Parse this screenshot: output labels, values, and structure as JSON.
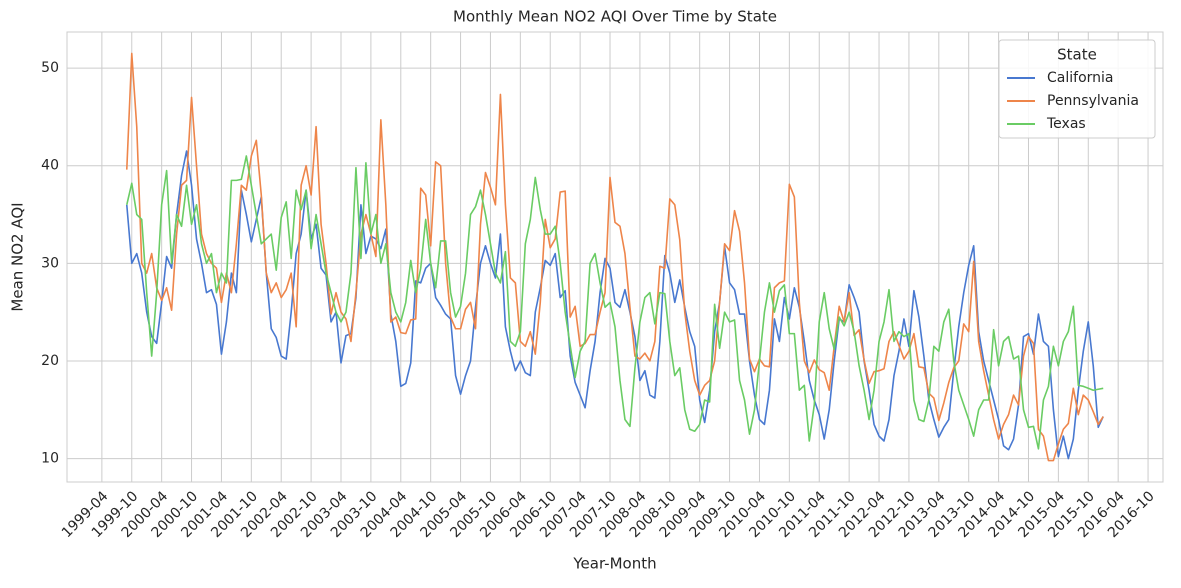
{
  "chart_data": {
    "type": "line",
    "title": "Monthly Mean NO2 AQI Over Time by State",
    "xlabel": "Year-Month",
    "ylabel": "Mean NO2 AQI",
    "x": [
      "1999-09",
      "1999-10",
      "1999-11",
      "1999-12",
      "2000-01",
      "2000-02",
      "2000-03",
      "2000-04",
      "2000-05",
      "2000-06",
      "2000-07",
      "2000-08",
      "2000-09",
      "2000-10",
      "2000-11",
      "2000-12",
      "2001-01",
      "2001-02",
      "2001-03",
      "2001-04",
      "2001-05",
      "2001-06",
      "2001-07",
      "2001-08",
      "2001-09",
      "2001-10",
      "2001-11",
      "2001-12",
      "2002-01",
      "2002-02",
      "2002-03",
      "2002-04",
      "2002-05",
      "2002-06",
      "2002-07",
      "2002-08",
      "2002-09",
      "2002-10",
      "2002-11",
      "2002-12",
      "2003-01",
      "2003-02",
      "2003-03",
      "2003-04",
      "2003-05",
      "2003-06",
      "2003-07",
      "2003-08",
      "2003-09",
      "2003-10",
      "2003-11",
      "2003-12",
      "2004-01",
      "2004-02",
      "2004-03",
      "2004-04",
      "2004-05",
      "2004-06",
      "2004-07",
      "2004-08",
      "2004-09",
      "2004-10",
      "2004-11",
      "2004-12",
      "2005-01",
      "2005-02",
      "2005-03",
      "2005-04",
      "2005-05",
      "2005-06",
      "2005-07",
      "2005-08",
      "2005-09",
      "2005-10",
      "2005-11",
      "2005-12",
      "2006-01",
      "2006-02",
      "2006-03",
      "2006-04",
      "2006-05",
      "2006-06",
      "2006-07",
      "2006-08",
      "2006-09",
      "2006-10",
      "2006-11",
      "2006-12",
      "2007-01",
      "2007-02",
      "2007-03",
      "2007-04",
      "2007-05",
      "2007-06",
      "2007-07",
      "2007-08",
      "2007-09",
      "2007-10",
      "2007-11",
      "2007-12",
      "2008-01",
      "2008-02",
      "2008-03",
      "2008-04",
      "2008-05",
      "2008-06",
      "2008-07",
      "2008-08",
      "2008-09",
      "2008-10",
      "2008-11",
      "2008-12",
      "2009-01",
      "2009-02",
      "2009-03",
      "2009-04",
      "2009-05",
      "2009-06",
      "2009-07",
      "2009-08",
      "2009-09",
      "2009-10",
      "2009-11",
      "2009-12",
      "2010-01",
      "2010-02",
      "2010-03",
      "2010-04",
      "2010-05",
      "2010-06",
      "2010-07",
      "2010-08",
      "2010-09",
      "2010-10",
      "2010-11",
      "2010-12",
      "2011-01",
      "2011-02",
      "2011-03",
      "2011-04",
      "2011-05",
      "2011-06",
      "2011-07",
      "2011-08",
      "2011-09",
      "2011-10",
      "2011-11",
      "2011-12",
      "2012-01",
      "2012-02",
      "2012-03",
      "2012-04",
      "2012-05",
      "2012-06",
      "2012-07",
      "2012-08",
      "2012-09",
      "2012-10",
      "2012-11",
      "2012-12",
      "2013-01",
      "2013-02",
      "2013-03",
      "2013-04",
      "2013-05",
      "2013-06",
      "2013-07",
      "2013-08",
      "2013-09",
      "2013-10",
      "2013-11",
      "2013-12",
      "2014-01",
      "2014-02",
      "2014-03",
      "2014-04",
      "2014-05",
      "2014-06",
      "2014-07",
      "2014-08",
      "2014-09",
      "2014-10",
      "2014-11",
      "2014-12",
      "2015-01",
      "2015-02",
      "2015-03",
      "2015-04",
      "2015-05",
      "2015-06",
      "2015-07",
      "2015-08",
      "2015-09",
      "2015-10",
      "2015-11",
      "2015-12",
      "2016-01"
    ],
    "series": [
      {
        "name": "California",
        "color": "#4878d0",
        "values": [
          36,
          30,
          31,
          29,
          25,
          22.5,
          21.8,
          26,
          30.7,
          29.5,
          35,
          39,
          41.5,
          38,
          32.5,
          30,
          27,
          27.3,
          25.8,
          20.7,
          24,
          29,
          27,
          37.5,
          35,
          32.2,
          34.5,
          36.8,
          29,
          23.3,
          22.4,
          20.5,
          20.2,
          25,
          31,
          33,
          37.5,
          32.5,
          34,
          29.5,
          28.8,
          24,
          25,
          19.8,
          22.6,
          22.8,
          26.5,
          36,
          31,
          32.8,
          32.5,
          31.5,
          33.5,
          24.8,
          22,
          17.4,
          17.7,
          19.8,
          28.2,
          28,
          29.5,
          30,
          26.5,
          25.7,
          24.8,
          24.3,
          18.5,
          16.6,
          18.5,
          20,
          25.5,
          30,
          31.8,
          30,
          28.5,
          33,
          23.5,
          21,
          19,
          20,
          18.8,
          18.5,
          25,
          27.5,
          30.3,
          29.8,
          31,
          26.5,
          27.2,
          20.5,
          17.8,
          16.5,
          15.2,
          19,
          22,
          27,
          30.5,
          29.5,
          26,
          25.5,
          27.3,
          25,
          22.5,
          18,
          19,
          16.5,
          16.2,
          22,
          30.8,
          29,
          26,
          28.3,
          25.5,
          23,
          21.5,
          16,
          13.7,
          17,
          23,
          26,
          31.7,
          28,
          27.3,
          24.8,
          24.8,
          20,
          16.5,
          14,
          13.5,
          17,
          24.3,
          22,
          26.5,
          24.3,
          27.5,
          25.5,
          22,
          18,
          16,
          14.5,
          12,
          15,
          20,
          24.3,
          24,
          27.8,
          26.5,
          25,
          20,
          17,
          13.5,
          12.3,
          11.8,
          14,
          18.5,
          21,
          24.3,
          21.5,
          27.2,
          24.5,
          20.5,
          16,
          14,
          12.2,
          13.2,
          14,
          19,
          23.5,
          27,
          29.8,
          31.8,
          23,
          20,
          18,
          16,
          14,
          11.3,
          10.9,
          12,
          15.5,
          22.5,
          22.8,
          20.7,
          24.8,
          22,
          21.5,
          15,
          10.2,
          12.3,
          10,
          12,
          17,
          21,
          24,
          19.5,
          13.2,
          14.3
        ]
      },
      {
        "name": "Pennsylvania",
        "color": "#ee854a",
        "values": [
          39.6,
          51.5,
          44,
          30,
          29,
          31,
          27.5,
          26.2,
          27.5,
          25.2,
          33,
          38,
          38.5,
          47,
          40,
          33,
          31,
          30,
          29.5,
          26,
          29,
          27,
          32,
          38,
          37.5,
          41,
          42.6,
          37,
          29,
          27,
          28,
          26.5,
          27.3,
          29,
          23.5,
          38,
          40,
          37,
          44,
          34,
          30,
          24.8,
          27,
          25,
          24.3,
          22,
          27,
          33,
          35,
          33,
          30.7,
          44.7,
          36,
          24,
          24.5,
          22.9,
          22.8,
          24.2,
          24.3,
          37.7,
          37,
          31.8,
          40.4,
          40,
          30,
          24.5,
          23.3,
          23.3,
          25.3,
          26,
          23.3,
          34,
          39.3,
          37.8,
          36,
          47.3,
          36,
          28.5,
          28,
          22,
          21.5,
          23,
          20.7,
          26,
          34.5,
          31.6,
          32.5,
          37.3,
          37.4,
          24.5,
          25.6,
          21.5,
          21.8,
          22.7,
          22.7,
          25,
          27,
          38.8,
          34.2,
          33.8,
          31,
          25.5,
          20.5,
          20.2,
          20.8,
          20,
          22,
          29.7,
          29.5,
          36.6,
          36,
          32.4,
          25,
          21,
          18,
          16.5,
          17.5,
          18,
          20,
          26,
          32,
          31.3,
          35.4,
          33.3,
          28,
          20.2,
          18.9,
          20.2,
          19.5,
          19.4,
          27.5,
          28,
          28.2,
          38.1,
          36.8,
          26,
          20,
          18.8,
          20.1,
          19.1,
          18.8,
          17,
          21.5,
          25.6,
          24,
          27,
          22.6,
          23.2,
          20.1,
          17.7,
          18.9,
          19,
          19.2,
          22,
          23,
          21.6,
          20.2,
          21,
          22.8,
          19.4,
          19.3,
          16.7,
          16.2,
          13.9,
          15.7,
          17.8,
          19.3,
          20,
          23.8,
          23,
          30.2,
          22,
          19,
          16.5,
          14,
          12,
          13.5,
          14.5,
          16.5,
          15.5,
          20.5,
          22.5,
          21.8,
          13,
          12.3,
          9.8,
          9.8,
          11.5,
          13,
          13.6,
          17.2,
          14.5,
          16.5,
          16,
          14.8,
          13.5,
          14.3
        ]
      },
      {
        "name": "Texas",
        "color": "#6acc64",
        "values": [
          36,
          38.2,
          35,
          34.5,
          27,
          20.5,
          27,
          36,
          39.5,
          30,
          35,
          33.8,
          38,
          34,
          36,
          32,
          30,
          31,
          27,
          29,
          28,
          38.5,
          38.5,
          38.6,
          41,
          38,
          35,
          32,
          32.5,
          33,
          29.3,
          34.7,
          36.3,
          30.5,
          37.5,
          35.5,
          37.5,
          31.5,
          35,
          32,
          29,
          27,
          25,
          24,
          25,
          29,
          39.8,
          30.5,
          40.3,
          33,
          35,
          30,
          32,
          27,
          25,
          24,
          26,
          30.3,
          27,
          29.5,
          34.5,
          30,
          27.5,
          32.3,
          32.3,
          27,
          24.5,
          25.6,
          29,
          35,
          35.8,
          37.5,
          35,
          32,
          29,
          28,
          31.2,
          22,
          21.5,
          23,
          32,
          34.5,
          38.8,
          35.5,
          33,
          33,
          33.8,
          30,
          25,
          21.6,
          18.3,
          21,
          22,
          30,
          31,
          28,
          25.5,
          26,
          23.5,
          18,
          14,
          13.3,
          19.3,
          24,
          26.5,
          27,
          23.8,
          27,
          26.9,
          22,
          18.5,
          19.3,
          15,
          13,
          12.8,
          13.5,
          16,
          15.8,
          25.8,
          21.3,
          25,
          24,
          24.2,
          18,
          16,
          12.5,
          15,
          20,
          25,
          28,
          25,
          27.2,
          27.8,
          22.8,
          22.8,
          17,
          17.5,
          11.8,
          15.5,
          24,
          27,
          23.3,
          21.2,
          24.5,
          23.6,
          25,
          23,
          19.5,
          17,
          14,
          17,
          22,
          24,
          27.3,
          22,
          23,
          22.5,
          22.8,
          16,
          14,
          13.8,
          16,
          21.5,
          21,
          24,
          25.3,
          20,
          17,
          15.5,
          14,
          12.3,
          15,
          16,
          16,
          23.2,
          19.5,
          22,
          22.5,
          20.2,
          20.5,
          15,
          13.2,
          13.3,
          11,
          16,
          17.4,
          21.5,
          19.5,
          22,
          23,
          25.6,
          17.5,
          17.4,
          17.2,
          17,
          17.1,
          17.2
        ]
      }
    ],
    "xlim": [
      "1998-09",
      "2017-01"
    ],
    "xticks": [
      "1999-04",
      "1999-10",
      "2000-04",
      "2000-10",
      "2001-04",
      "2001-10",
      "2002-04",
      "2002-10",
      "2003-04",
      "2003-10",
      "2004-04",
      "2004-10",
      "2005-04",
      "2005-10",
      "2006-04",
      "2006-10",
      "2007-04",
      "2007-10",
      "2008-04",
      "2008-10",
      "2009-04",
      "2009-10",
      "2010-04",
      "2010-10",
      "2011-04",
      "2011-10",
      "2012-04",
      "2012-10",
      "2013-04",
      "2013-10",
      "2014-04",
      "2014-10",
      "2015-04",
      "2015-10",
      "2016-04",
      "2016-10"
    ],
    "ylim": [
      7.6,
      53.7
    ],
    "yticks": [
      10,
      20,
      30,
      40,
      50
    ],
    "grid": true,
    "legend_title": "State",
    "legend": "upper right"
  }
}
